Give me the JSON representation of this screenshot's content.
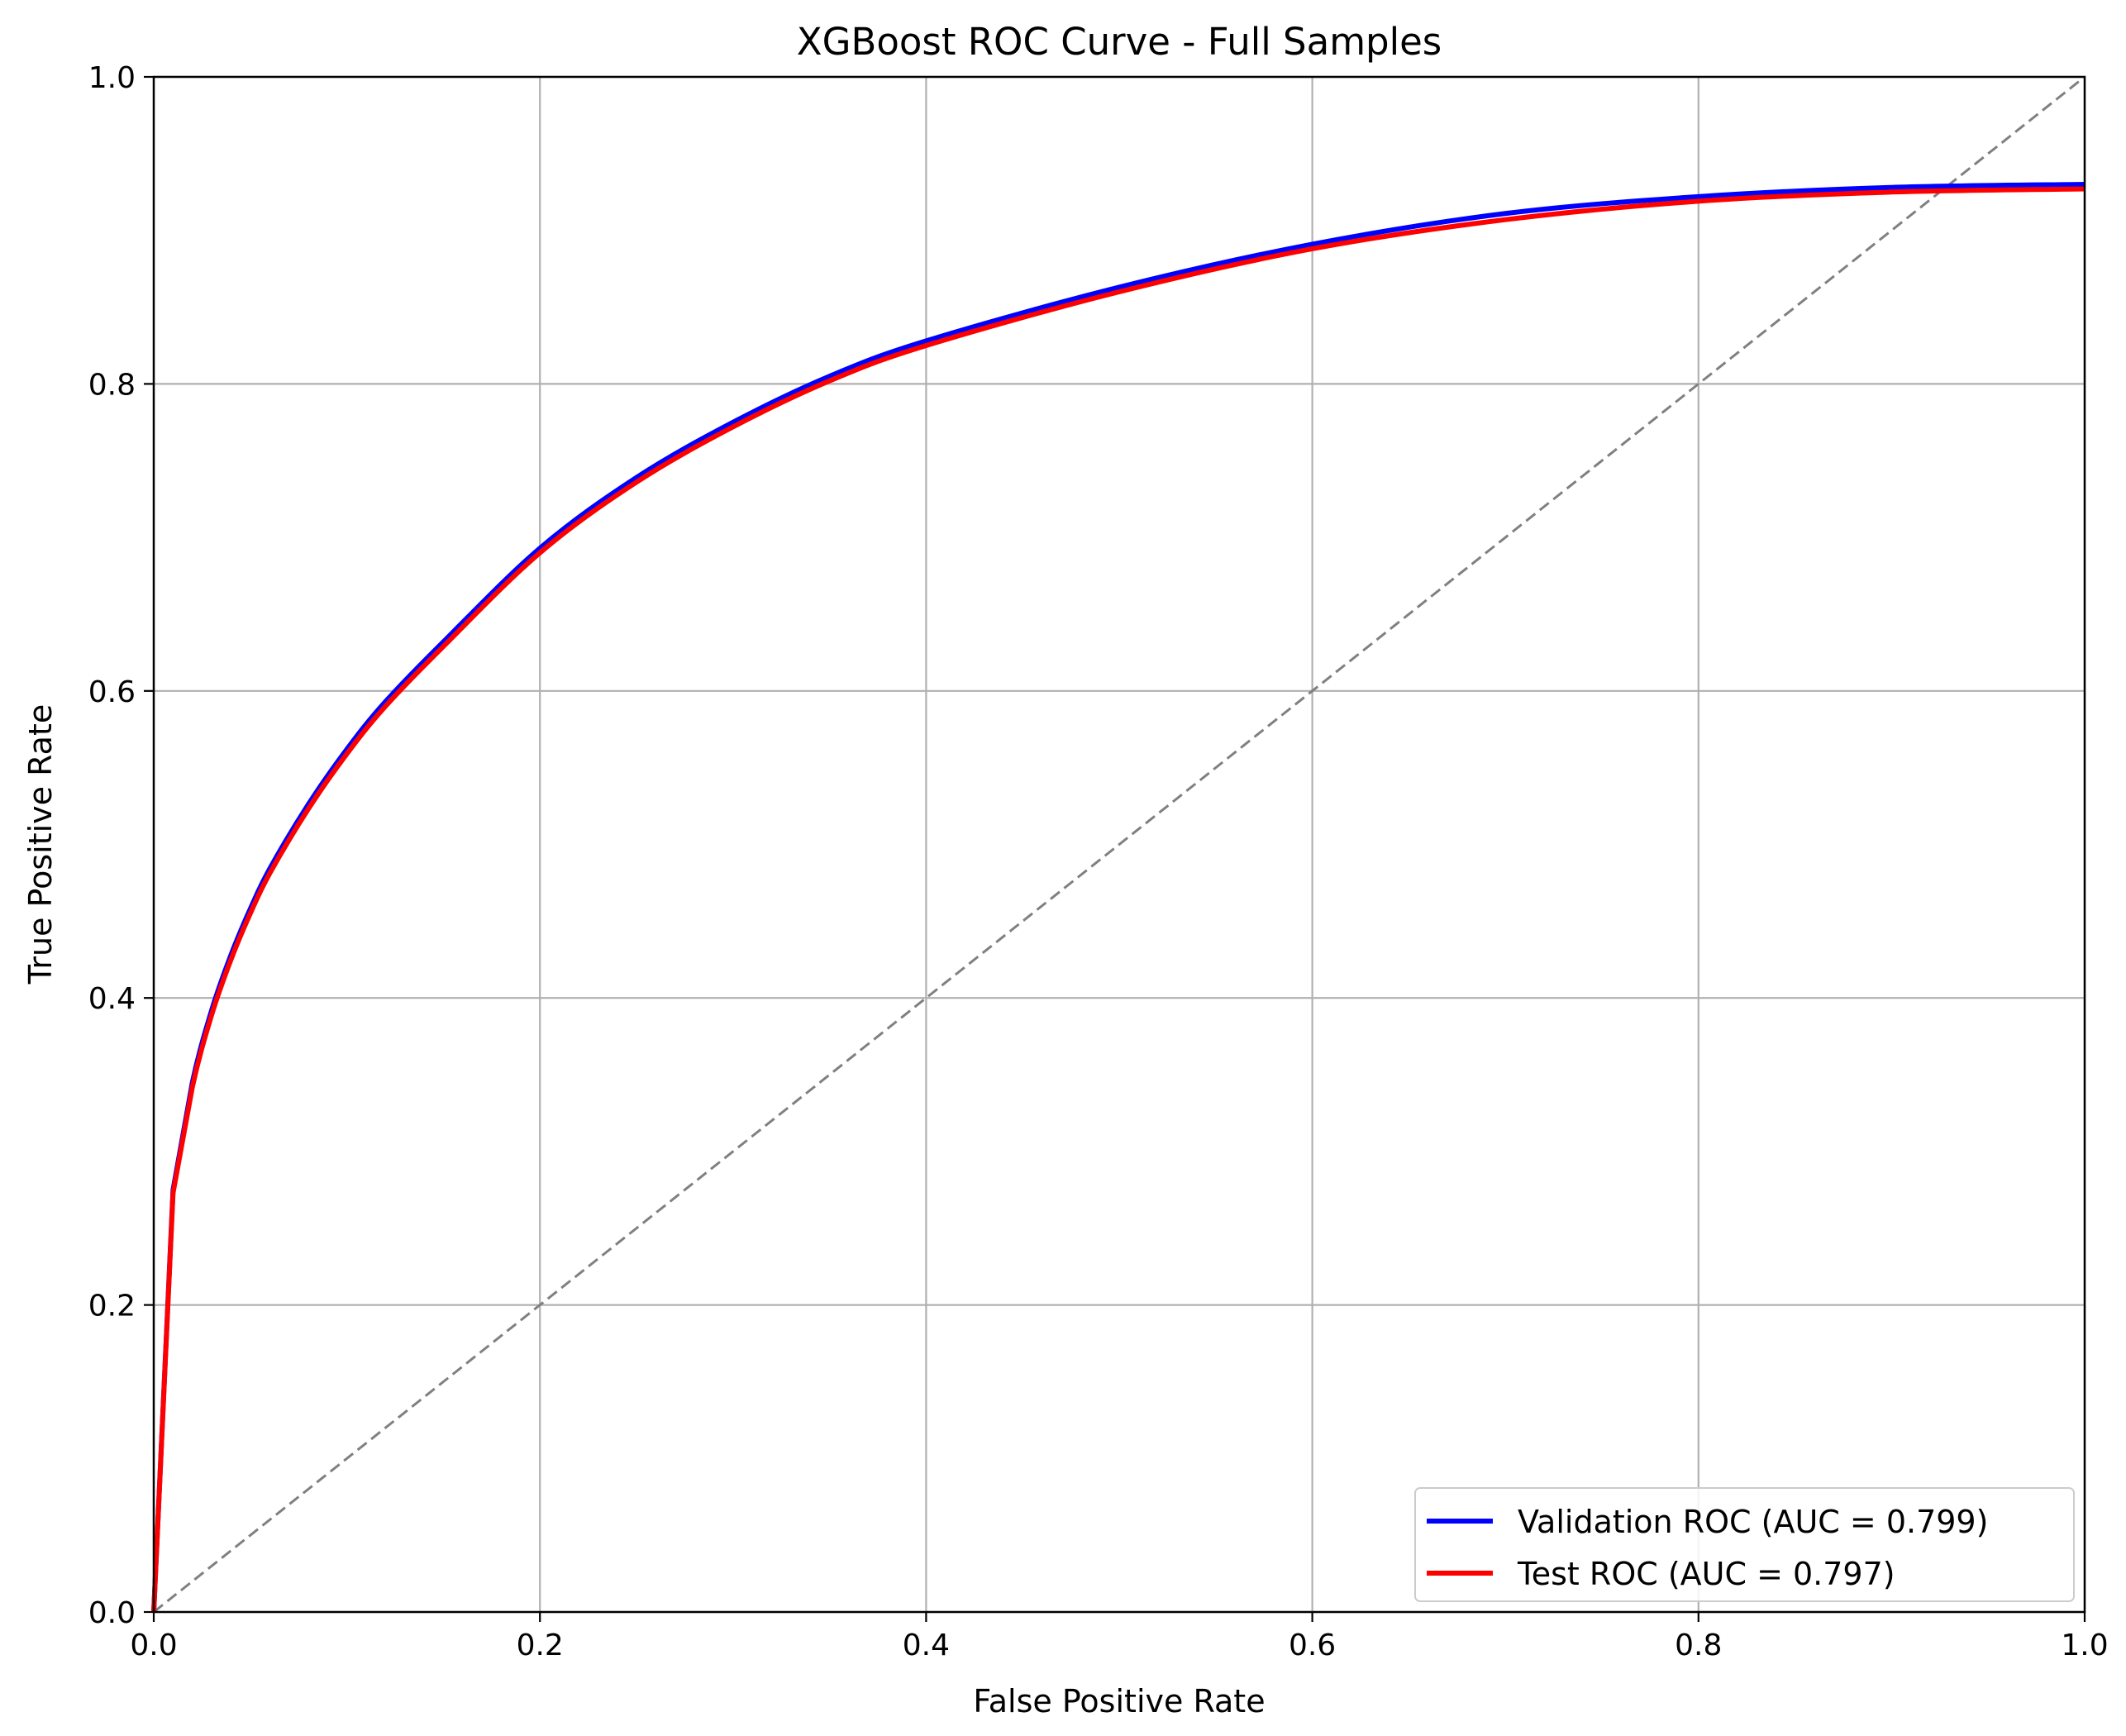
{
  "chart_data": {
    "type": "line",
    "title": "XGBoost ROC Curve - Full Samples",
    "xlabel": "False Positive Rate",
    "ylabel": "True Positive Rate",
    "xlim": [
      0.0,
      1.0
    ],
    "ylim": [
      0.0,
      1.0
    ],
    "xticks": [
      "0.0",
      "0.2",
      "0.4",
      "0.6",
      "0.8",
      "1.0"
    ],
    "yticks": [
      "0.0",
      "0.2",
      "0.4",
      "0.6",
      "0.8",
      "1.0"
    ],
    "grid": true,
    "legend_position": "lower right",
    "series": [
      {
        "name": "Validation ROC (AUC = 0.799)",
        "color": "#0000ff",
        "x": [
          0.0,
          0.01,
          0.02,
          0.03,
          0.04,
          0.05,
          0.06,
          0.08,
          0.1,
          0.12,
          0.15,
          0.2,
          0.25,
          0.3,
          0.35,
          0.4,
          0.5,
          0.6,
          0.7,
          0.8,
          0.9,
          1.0
        ],
        "y": [
          0.0,
          0.275,
          0.345,
          0.392,
          0.428,
          0.458,
          0.484,
          0.526,
          0.562,
          0.593,
          0.632,
          0.693,
          0.739,
          0.775,
          0.805,
          0.828,
          0.863,
          0.891,
          0.911,
          0.922,
          0.928,
          0.93
        ]
      },
      {
        "name": "Test ROC (AUC = 0.797)",
        "color": "#ff0000",
        "x": [
          0.0,
          0.01,
          0.02,
          0.03,
          0.04,
          0.05,
          0.06,
          0.08,
          0.1,
          0.12,
          0.15,
          0.2,
          0.25,
          0.3,
          0.35,
          0.4,
          0.5,
          0.6,
          0.7,
          0.8,
          0.9,
          1.0
        ],
        "y": [
          0.0,
          0.273,
          0.342,
          0.389,
          0.425,
          0.455,
          0.481,
          0.523,
          0.559,
          0.59,
          0.629,
          0.69,
          0.736,
          0.772,
          0.802,
          0.825,
          0.86,
          0.888,
          0.907,
          0.919,
          0.925,
          0.927
        ]
      }
    ],
    "reference_line": {
      "x": [
        0.0,
        1.0
      ],
      "y": [
        0.0,
        1.0
      ],
      "color": "#808080",
      "style": "dashed"
    }
  }
}
